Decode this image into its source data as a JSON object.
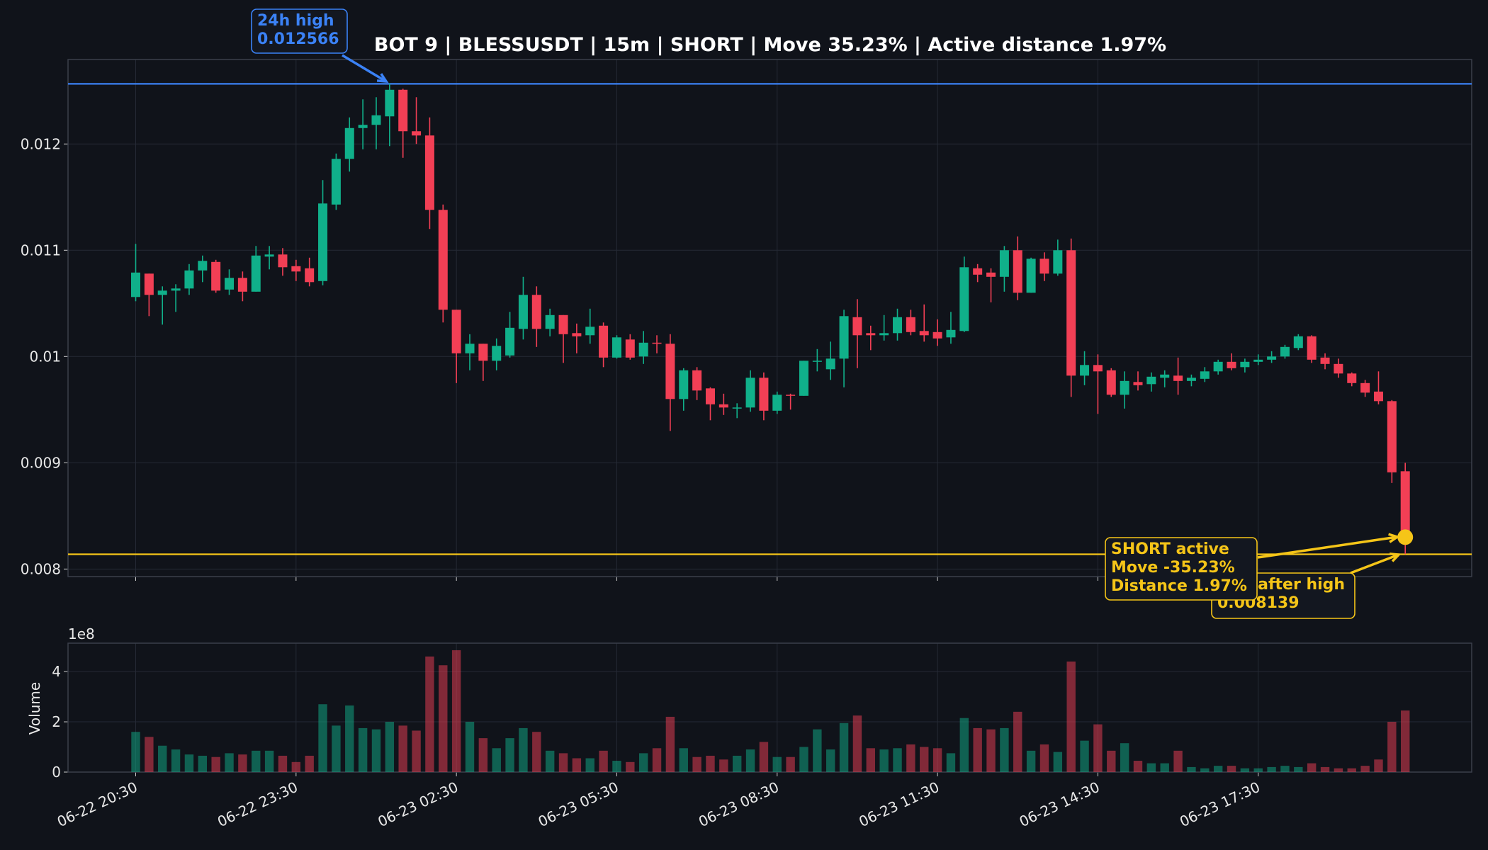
{
  "chart_data": {
    "type": "candlestick",
    "title": "BOT 9 | BLESSUSDT | 15m | SHORT | Move 35.23% | Active distance 1.97%",
    "categories": [
      "06-22 20:30",
      null,
      null,
      null,
      null,
      null,
      null,
      null,
      null,
      null,
      null,
      null,
      "06-22 23:30",
      null,
      null,
      null,
      null,
      null,
      null,
      null,
      null,
      null,
      null,
      null,
      "06-23 02:30",
      null,
      null,
      null,
      null,
      null,
      null,
      null,
      null,
      null,
      null,
      null,
      "06-23 05:30",
      null,
      null,
      null,
      null,
      null,
      null,
      null,
      null,
      null,
      null,
      null,
      "06-23 08:30",
      null,
      null,
      null,
      null,
      null,
      null,
      null,
      null,
      null,
      null,
      null,
      "06-23 11:30",
      null,
      null,
      null,
      null,
      null,
      null,
      null,
      null,
      null,
      null,
      null,
      "06-23 14:30",
      null,
      null,
      null,
      null,
      null,
      null,
      null,
      null,
      null,
      null,
      null,
      "06-23 17:30",
      null,
      null,
      null,
      null,
      null,
      null,
      null,
      null,
      null,
      null,
      null
    ],
    "open": [
      0.01056,
      0.01078,
      0.01058,
      0.01062,
      0.01064,
      0.01081,
      0.01089,
      0.01063,
      0.01074,
      0.01061,
      0.01094,
      0.01096,
      0.01085,
      0.01083,
      0.01071,
      0.01143,
      0.01186,
      0.01215,
      0.01218,
      0.01226,
      0.01251,
      0.01212,
      0.01208,
      0.01138,
      0.01044,
      0.01003,
      0.01012,
      0.00996,
      0.01001,
      0.01026,
      0.01058,
      0.01026,
      0.01039,
      0.01022,
      0.0102,
      0.01029,
      0.00999,
      0.01016,
      0.01,
      0.01013,
      0.01012,
      0.0096,
      0.00987,
      0.0097,
      0.00955,
      0.00951,
      0.00952,
      0.0098,
      0.00949,
      0.00964,
      0.00963,
      0.00995,
      0.00988,
      0.00998,
      0.01037,
      0.01022,
      0.0102,
      0.01022,
      0.01037,
      0.01024,
      0.01023,
      0.01018,
      0.01024,
      0.01083,
      0.01079,
      0.01075,
      0.011,
      0.0106,
      0.01092,
      0.01078,
      0.011,
      0.00982,
      0.00992,
      0.00987,
      0.00964,
      0.00976,
      0.00974,
      0.0098,
      0.00982,
      0.00977,
      0.00979,
      0.00986,
      0.00995,
      0.0099,
      0.00995,
      0.00997,
      0.01,
      0.01008,
      0.01019,
      0.00999,
      0.00993,
      0.00984,
      0.00975,
      0.00967,
      0.00958,
      0.00892
    ],
    "high": [
      0.01106,
      0.01078,
      0.01066,
      0.01068,
      0.01087,
      0.01095,
      0.01091,
      0.01082,
      0.0108,
      0.01104,
      0.01104,
      0.01102,
      0.01091,
      0.01093,
      0.01166,
      0.01191,
      0.01225,
      0.01242,
      0.01244,
      0.01257,
      0.01252,
      0.01244,
      0.01225,
      0.01143,
      0.01044,
      0.01021,
      0.01012,
      0.01017,
      0.01042,
      0.01075,
      0.01066,
      0.01045,
      0.01039,
      0.01031,
      0.01045,
      0.01032,
      0.0102,
      0.01021,
      0.01024,
      0.0102,
      0.01021,
      0.00989,
      0.0099,
      0.00971,
      0.00965,
      0.00956,
      0.00987,
      0.00985,
      0.00967,
      0.00965,
      0.00996,
      0.01007,
      0.01014,
      0.01044,
      0.01054,
      0.01029,
      0.01039,
      0.01045,
      0.01044,
      0.01049,
      0.01035,
      0.01042,
      0.01094,
      0.01087,
      0.01083,
      0.01104,
      0.01113,
      0.01093,
      0.01098,
      0.0111,
      0.01111,
      0.01005,
      0.01002,
      0.00989,
      0.00986,
      0.00986,
      0.00985,
      0.00987,
      0.00999,
      0.00983,
      0.0099,
      0.00997,
      0.01003,
      0.00998,
      0.01002,
      0.01005,
      0.01011,
      0.01021,
      0.0102,
      0.01003,
      0.00998,
      0.00985,
      0.00978,
      0.00986,
      0.00959,
      0.009
    ],
    "low": [
      0.01052,
      0.01038,
      0.0103,
      0.01042,
      0.01058,
      0.0107,
      0.0106,
      0.01058,
      0.01052,
      0.01061,
      0.01082,
      0.01076,
      0.01071,
      0.01066,
      0.01067,
      0.01138,
      0.01174,
      0.01195,
      0.01195,
      0.01198,
      0.01187,
      0.012,
      0.0112,
      0.01032,
      0.00975,
      0.00987,
      0.00977,
      0.00987,
      0.00999,
      0.01016,
      0.01009,
      0.01019,
      0.00994,
      0.01003,
      0.01012,
      0.0099,
      0.00998,
      0.00997,
      0.00993,
      0.01003,
      0.0093,
      0.00949,
      0.00959,
      0.0094,
      0.00945,
      0.00942,
      0.00948,
      0.0094,
      0.00946,
      0.0095,
      0.00963,
      0.00986,
      0.00978,
      0.00971,
      0.00989,
      0.01006,
      0.01015,
      0.01015,
      0.0102,
      0.01014,
      0.0101,
      0.01012,
      0.01023,
      0.0107,
      0.01051,
      0.01061,
      0.01053,
      0.0106,
      0.01071,
      0.01076,
      0.00962,
      0.00973,
      0.00946,
      0.00962,
      0.00951,
      0.00968,
      0.00967,
      0.00971,
      0.00964,
      0.00972,
      0.00976,
      0.00983,
      0.00987,
      0.00985,
      0.00992,
      0.00994,
      0.00998,
      0.01006,
      0.00994,
      0.00988,
      0.0098,
      0.00972,
      0.00962,
      0.00955,
      0.00881,
      0.00814
    ],
    "close": [
      0.01079,
      0.01058,
      0.01062,
      0.01064,
      0.01081,
      0.0109,
      0.01062,
      0.01074,
      0.01061,
      0.01095,
      0.01096,
      0.01084,
      0.0108,
      0.0107,
      0.01144,
      0.01186,
      0.01215,
      0.01218,
      0.01227,
      0.01251,
      0.01212,
      0.01208,
      0.01138,
      0.01044,
      0.01003,
      0.01012,
      0.00996,
      0.0101,
      0.01027,
      0.01058,
      0.01026,
      0.01039,
      0.01021,
      0.01019,
      0.01028,
      0.00999,
      0.01018,
      0.00999,
      0.01013,
      0.01012,
      0.0096,
      0.00987,
      0.00968,
      0.00955,
      0.00952,
      0.00952,
      0.0098,
      0.00949,
      0.00964,
      0.00963,
      0.00996,
      0.00996,
      0.00998,
      0.01038,
      0.0102,
      0.0102,
      0.01022,
      0.01037,
      0.01023,
      0.0102,
      0.01017,
      0.01025,
      0.01084,
      0.01077,
      0.01075,
      0.011,
      0.0106,
      0.01092,
      0.01078,
      0.011,
      0.00982,
      0.00992,
      0.00986,
      0.00964,
      0.00977,
      0.00973,
      0.00981,
      0.00983,
      0.00977,
      0.0098,
      0.00986,
      0.00995,
      0.00989,
      0.00995,
      0.00997,
      0.01,
      0.01009,
      0.01019,
      0.00997,
      0.00993,
      0.00984,
      0.00975,
      0.00966,
      0.00958,
      0.00891,
      0.0083
    ],
    "volume": [
      1.6,
      1.4,
      1.05,
      0.9,
      0.7,
      0.65,
      0.6,
      0.75,
      0.7,
      0.85,
      0.85,
      0.65,
      0.4,
      0.65,
      2.7,
      1.85,
      2.65,
      1.75,
      1.7,
      2.0,
      1.85,
      1.65,
      4.6,
      4.25,
      4.85,
      2.0,
      1.35,
      0.95,
      1.35,
      1.75,
      1.6,
      0.85,
      0.75,
      0.55,
      0.55,
      0.85,
      0.45,
      0.4,
      0.75,
      0.95,
      2.2,
      0.95,
      0.6,
      0.65,
      0.5,
      0.65,
      0.9,
      1.2,
      0.6,
      0.6,
      1.0,
      1.7,
      0.9,
      1.95,
      2.25,
      0.95,
      0.9,
      0.95,
      1.1,
      1.0,
      0.95,
      0.75,
      2.15,
      1.75,
      1.7,
      1.75,
      2.4,
      0.85,
      1.1,
      0.8,
      4.4,
      1.25,
      1.9,
      0.85,
      1.15,
      0.45,
      0.35,
      0.35,
      0.85,
      0.2,
      0.15,
      0.25,
      0.25,
      0.15,
      0.15,
      0.2,
      0.25,
      0.2,
      0.35,
      0.2,
      0.15,
      0.15,
      0.25,
      0.5,
      2.0,
      2.45
    ],
    "up_color": "#10b08a",
    "down_color": "#f23f55",
    "ylim": [
      0.007929,
      0.012795
    ],
    "yticks": [
      0.008,
      0.009,
      0.01,
      0.011,
      0.012
    ],
    "volume_ylim": [
      0,
      5.13
    ],
    "volume_yticks": [
      0,
      2,
      4
    ],
    "volume_offset_label": "1e8",
    "volume_ylabel": "Volume",
    "grid": true,
    "hlines": [
      {
        "value": 0.012566,
        "color": "#3b82f6"
      },
      {
        "value": 0.008139,
        "color": "#f5c518"
      }
    ],
    "annotations": [
      {
        "lines": [
          "24h high",
          "0.012566"
        ],
        "color": "#3b82f6"
      },
      {
        "lines": [
          "SHORT active",
          "Move -35.23%",
          "Distance 1.97%"
        ],
        "color": "#f5c518"
      },
      {
        "lines": [
          "Low after high",
          "0.008139"
        ],
        "color": "#f5c518"
      }
    ]
  }
}
